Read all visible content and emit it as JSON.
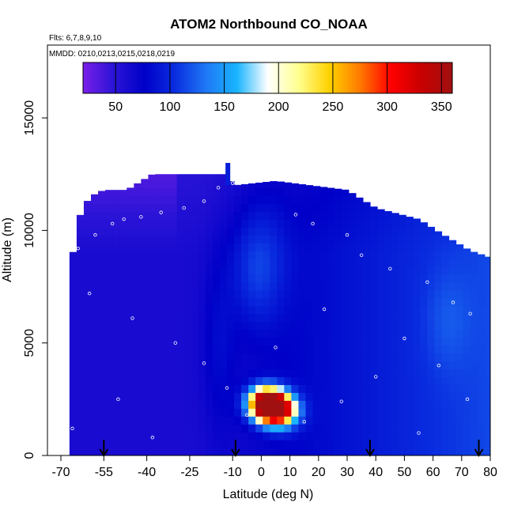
{
  "chart_data": {
    "type": "heatmap",
    "title": "ATOM2 Northbound CO_NOAA",
    "flights_note": "Flts: 6,7,8,9,10",
    "dates_note": "MMDD: 0210,0213,0215,0218,0219",
    "xlabel": "Latitude (deg N)",
    "ylabel": "Altitude (m)",
    "xlim": [
      -70,
      80
    ],
    "ylim": [
      0,
      17500
    ],
    "xticks": [
      -70,
      -55,
      -40,
      -25,
      -10,
      0,
      10,
      20,
      30,
      40,
      50,
      60,
      70,
      80
    ],
    "xtick_labels": [
      "-70",
      "-55",
      "-40",
      "-25",
      "-10",
      "0",
      "10",
      "20",
      "30",
      "40",
      "50",
      "60",
      "70",
      "80"
    ],
    "yticks": [
      0,
      5000,
      10000,
      15000
    ],
    "ytick_labels": [
      "0",
      "5000",
      "10000",
      "15000"
    ],
    "colorbar": {
      "range": [
        20,
        360
      ],
      "ticks": [
        50,
        100,
        150,
        200,
        250,
        300,
        350
      ],
      "tick_labels": [
        "50",
        "100",
        "150",
        "200",
        "250",
        "300",
        "350"
      ],
      "colors": [
        "#7a1fe8",
        "#2a14d6",
        "#0000c8",
        "#0a2ee0",
        "#1f78f5",
        "#19b4ff",
        "#ffffff",
        "#ffff90",
        "#ffd200",
        "#ff7a00",
        "#ff0000",
        "#c80000",
        "#a01010"
      ]
    },
    "grid": false,
    "legend": "top",
    "ceiling_profile": [
      {
        "lat": -67,
        "alt": 8000
      },
      {
        "lat": -64,
        "alt": 10500
      },
      {
        "lat": -60,
        "alt": 11500
      },
      {
        "lat": -55,
        "alt": 11800
      },
      {
        "lat": -47,
        "alt": 11800
      },
      {
        "lat": -38,
        "alt": 12500
      },
      {
        "lat": -20,
        "alt": 12500
      },
      {
        "lat": -12,
        "alt": 12500
      },
      {
        "lat": -10,
        "alt": 12000
      },
      {
        "lat": 5,
        "alt": 12200
      },
      {
        "lat": 30,
        "alt": 11800
      },
      {
        "lat": 40,
        "alt": 11000
      },
      {
        "lat": 55,
        "alt": 10500
      },
      {
        "lat": 65,
        "alt": 9700
      },
      {
        "lat": 73,
        "alt": 9100
      },
      {
        "lat": 80,
        "alt": 8800
      }
    ],
    "enhancements": [
      {
        "lat": 3,
        "alt": 2200,
        "value": 340
      },
      {
        "lat": 1,
        "alt": 2400,
        "value": 280
      },
      {
        "lat": 7,
        "alt": 2000,
        "value": 300
      },
      {
        "lat": -2,
        "alt": 8000,
        "value": 130
      },
      {
        "lat": 65,
        "alt": 6000,
        "value": 125
      }
    ],
    "profile_markers": [
      -55,
      -9,
      38,
      76
    ],
    "sample_points": [
      {
        "lat": -64,
        "alt": 9200
      },
      {
        "lat": -58,
        "alt": 9800
      },
      {
        "lat": -52,
        "alt": 10300
      },
      {
        "lat": -48,
        "alt": 10500
      },
      {
        "lat": -42,
        "alt": 10600
      },
      {
        "lat": -35,
        "alt": 10800
      },
      {
        "lat": -27,
        "alt": 11000
      },
      {
        "lat": -20,
        "alt": 11300
      },
      {
        "lat": -15,
        "alt": 11900
      },
      {
        "lat": -10,
        "alt": 12100
      },
      {
        "lat": 12,
        "alt": 10700
      },
      {
        "lat": 18,
        "alt": 10300
      },
      {
        "lat": 30,
        "alt": 9800
      },
      {
        "lat": 35,
        "alt": 8900
      },
      {
        "lat": 45,
        "alt": 8300
      },
      {
        "lat": 58,
        "alt": 7700
      },
      {
        "lat": 67,
        "alt": 6800
      },
      {
        "lat": 73,
        "alt": 6300
      },
      {
        "lat": -60,
        "alt": 7200
      },
      {
        "lat": -45,
        "alt": 6100
      },
      {
        "lat": -30,
        "alt": 5000
      },
      {
        "lat": -20,
        "alt": 4100
      },
      {
        "lat": -12,
        "alt": 3000
      },
      {
        "lat": -5,
        "alt": 1800
      },
      {
        "lat": 15,
        "alt": 1500
      },
      {
        "lat": 28,
        "alt": 2400
      },
      {
        "lat": 40,
        "alt": 3500
      },
      {
        "lat": 50,
        "alt": 5200
      },
      {
        "lat": 62,
        "alt": 4000
      },
      {
        "lat": 72,
        "alt": 2500
      },
      {
        "lat": -66,
        "alt": 1200
      },
      {
        "lat": -50,
        "alt": 2500
      },
      {
        "lat": -38,
        "alt": 800
      },
      {
        "lat": 22,
        "alt": 6500
      },
      {
        "lat": 5,
        "alt": 4800
      },
      {
        "lat": 55,
        "alt": 1000
      }
    ]
  }
}
